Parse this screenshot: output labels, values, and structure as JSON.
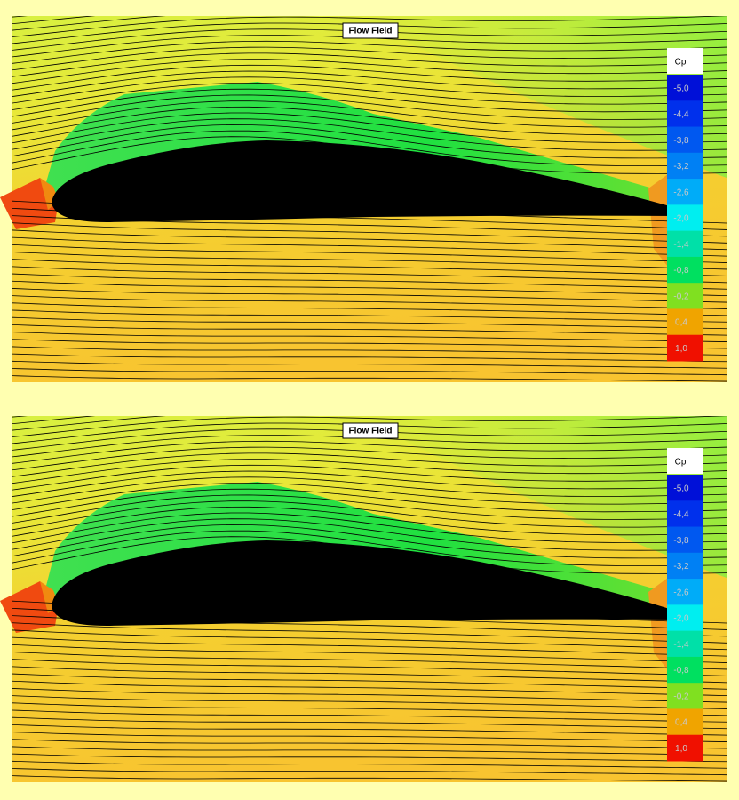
{
  "panels": [
    {
      "title": "Flow Field",
      "legend": {
        "title": "Cp",
        "entries": [
          {
            "label": "-5,0",
            "color": "#0010d8"
          },
          {
            "label": "-4,4",
            "color": "#0030ec"
          },
          {
            "label": "-3,8",
            "color": "#0058f0"
          },
          {
            "label": "-3,2",
            "color": "#0080f4"
          },
          {
            "label": "-2,6",
            "color": "#00acf8"
          },
          {
            "label": "-2,0",
            "color": "#00eef0"
          },
          {
            "label": "-1,4",
            "color": "#00e0a8"
          },
          {
            "label": "-0,8",
            "color": "#00e060"
          },
          {
            "label": "-0,2",
            "color": "#80e020"
          },
          {
            "label": "0,4",
            "color": "#f0a400"
          },
          {
            "label": "1,0",
            "color": "#f01000"
          }
        ]
      }
    },
    {
      "title": "Flow Field",
      "legend": {
        "title": "Cp",
        "entries": [
          {
            "label": "-5,0",
            "color": "#0010d8"
          },
          {
            "label": "-4,4",
            "color": "#0030ec"
          },
          {
            "label": "-3,8",
            "color": "#0058f0"
          },
          {
            "label": "-3,2",
            "color": "#0080f4"
          },
          {
            "label": "-2,6",
            "color": "#00acf8"
          },
          {
            "label": "-2,0",
            "color": "#00eef0"
          },
          {
            "label": "-1,4",
            "color": "#00e0a8"
          },
          {
            "label": "-0,8",
            "color": "#00e060"
          },
          {
            "label": "-0,2",
            "color": "#80e020"
          },
          {
            "label": "0,4",
            "color": "#f0a400"
          },
          {
            "label": "1,0",
            "color": "#f01000"
          }
        ]
      }
    }
  ]
}
